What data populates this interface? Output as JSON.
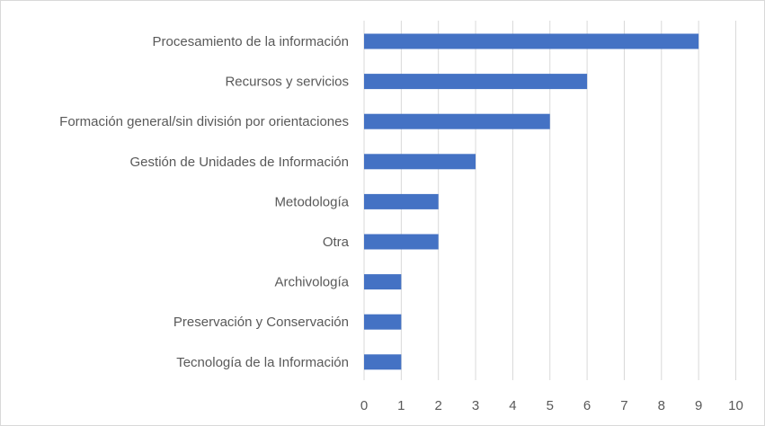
{
  "chart_data": {
    "type": "bar",
    "orientation": "horizontal",
    "categories": [
      "Procesamiento de la información",
      "Recursos y servicios",
      "Formación general/sin división por orientaciones",
      "Gestión de Unidades de Información",
      "Metodología",
      "Otra",
      "Archivología",
      "Preservación y Conservación",
      "Tecnología de la Información"
    ],
    "values": [
      9,
      6,
      5,
      3,
      2,
      2,
      1,
      1,
      1
    ],
    "xlim": [
      0,
      10
    ],
    "xticks": [
      0,
      1,
      2,
      3,
      4,
      5,
      6,
      7,
      8,
      9,
      10
    ],
    "grid": "vertical",
    "legend": "none",
    "bar_color": "#4472c4",
    "grid_color": "#d9d9d9",
    "label_color": "#595959"
  }
}
